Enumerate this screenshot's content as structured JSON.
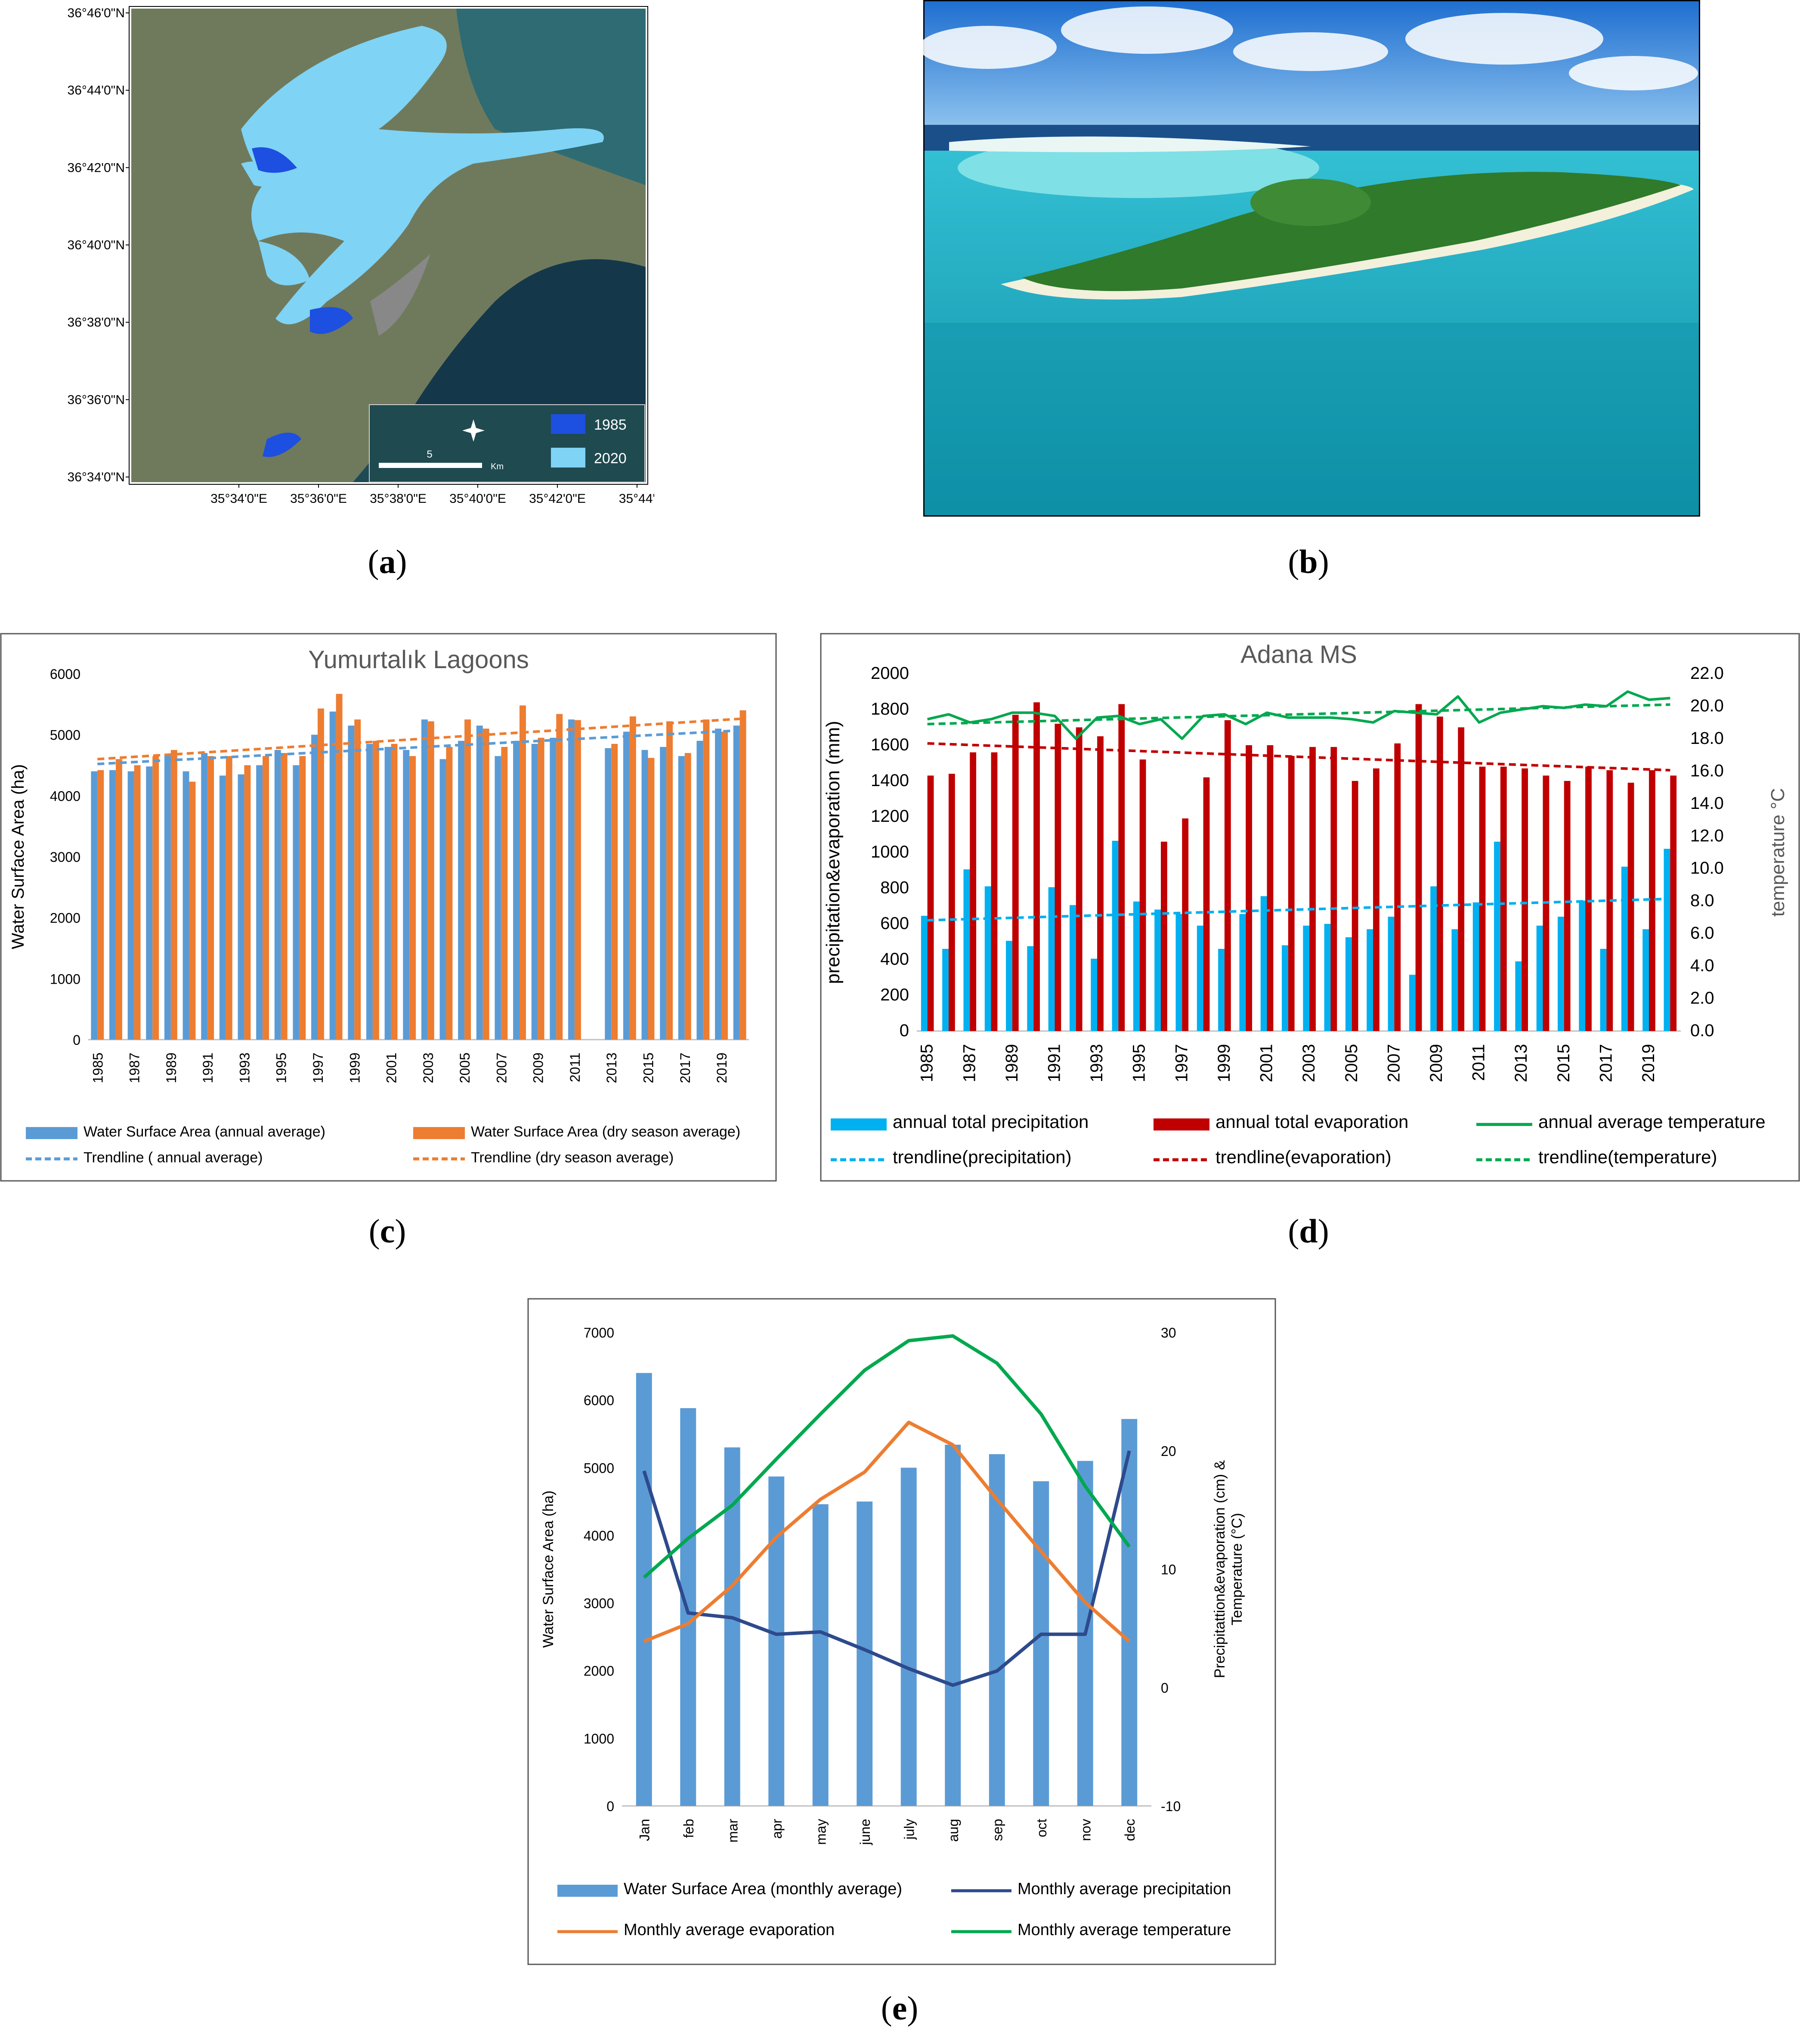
{
  "captions": {
    "a": "a",
    "b": "b",
    "c": "c",
    "d": "d",
    "e": "e"
  },
  "panel_a": {
    "lat_labels": [
      "36°46'0\"N",
      "36°44'0\"N",
      "36°42'0\"N",
      "36°40'0\"N",
      "36°38'0\"N",
      "36°36'0\"N",
      "36°34'0\"N"
    ],
    "lon_labels": [
      "35°34'0\"E",
      "35°36'0\"E",
      "35°38'0\"E",
      "35°40'0\"E",
      "35°42'0\"E",
      "35°44'"
    ],
    "legend": [
      {
        "label": "1985",
        "color": "#1d4fe0"
      },
      {
        "label": "2020",
        "color": "#7fd3f5"
      }
    ],
    "scale_number": "5",
    "scale_unit": "Km",
    "icons": [
      "compass-rose-icon"
    ]
  },
  "panel_b": {
    "description_icon": "aerial-island-photo"
  },
  "chart_data": [
    {
      "id": "c",
      "type": "bar",
      "title": "Yumurtalık Lagoons",
      "ylabel": "Water Surface Area (ha)",
      "ylim": [
        0,
        6000
      ],
      "yticks": [
        "0",
        "1000",
        "2000",
        "3000",
        "4000",
        "5000",
        "6000"
      ],
      "categories": [
        1985,
        1986,
        1987,
        1988,
        1989,
        1990,
        1991,
        1992,
        1993,
        1994,
        1995,
        1996,
        1997,
        1998,
        1999,
        2000,
        2001,
        2002,
        2003,
        2004,
        2005,
        2006,
        2007,
        2008,
        2009,
        2010,
        2011,
        2012,
        2013,
        2014,
        2015,
        2016,
        2017,
        2018,
        2019,
        2020
      ],
      "xtick_labels": [
        "1985",
        "1987",
        "1989",
        "1991",
        "1993",
        "1995",
        "1997",
        "1999",
        "2001",
        "2003",
        "2005",
        "2007",
        "2009",
        "2011",
        "2013",
        "2015",
        "2017",
        "2019"
      ],
      "series": [
        {
          "name": "Water Surface Area (annual average)",
          "color": "#5b9bd5",
          "values": [
            4400,
            4420,
            4400,
            4480,
            4680,
            4400,
            4700,
            4330,
            4350,
            4500,
            4750,
            4500,
            5000,
            5380,
            5150,
            4850,
            4800,
            4750,
            5250,
            4600,
            4900,
            5150,
            4650,
            4900,
            4850,
            4950,
            5250,
            null,
            4780,
            5050,
            4750,
            4800,
            4650,
            4900,
            5100,
            5150
          ]
        },
        {
          "name": "Water Surface Area (dry season average)",
          "color": "#ed7d31",
          "values": [
            4420,
            4600,
            4500,
            4650,
            4750,
            4230,
            4650,
            4650,
            4500,
            4650,
            4700,
            4650,
            5430,
            5670,
            5250,
            4900,
            4850,
            4650,
            5220,
            4800,
            5250,
            5100,
            4800,
            5480,
            4950,
            5340,
            5240,
            null,
            4850,
            5300,
            4620,
            5220,
            4700,
            5250,
            5050,
            5400
          ]
        }
      ],
      "trendlines": [
        {
          "name": "Trendline ( annual average)",
          "color": "#5b9bd5",
          "start": 4520,
          "end": 5070
        },
        {
          "name": "Trendline (dry season average)",
          "color": "#ed7d31",
          "start": 4600,
          "end": 5260
        }
      ]
    },
    {
      "id": "d",
      "type": "bar",
      "title": "Adana MS",
      "ylabel": "precipitation&evaporation (mm)",
      "y2label": "temperature °C",
      "ylim": [
        0,
        2000
      ],
      "y2lim": [
        0,
        22
      ],
      "yticks": [
        "0",
        "200",
        "400",
        "600",
        "800",
        "1000",
        "1200",
        "1400",
        "1600",
        "1800",
        "2000"
      ],
      "y2ticks": [
        "0.0",
        "2.0",
        "4.0",
        "6.0",
        "8.0",
        "10.0",
        "12.0",
        "14.0",
        "16.0",
        "18.0",
        "20.0",
        "22.0"
      ],
      "categories": [
        1985,
        1986,
        1987,
        1988,
        1989,
        1990,
        1991,
        1992,
        1993,
        1994,
        1995,
        1996,
        1997,
        1998,
        1999,
        2000,
        2001,
        2002,
        2003,
        2004,
        2005,
        2006,
        2007,
        2008,
        2009,
        2010,
        2011,
        2012,
        2013,
        2014,
        2015,
        2016,
        2017,
        2018,
        2019,
        2020
      ],
      "xtick_labels": [
        "1985",
        "1987",
        "1989",
        "1991",
        "1993",
        "1995",
        "1997",
        "1999",
        "2001",
        "2003",
        "2005",
        "2007",
        "2009",
        "2011",
        "2013",
        "2015",
        "2017",
        "2019"
      ],
      "series": [
        {
          "name": "annual total precipitation",
          "color": "#00b0f0",
          "values": [
            645,
            460,
            905,
            810,
            505,
            475,
            805,
            705,
            405,
            1065,
            725,
            680,
            655,
            590,
            460,
            655,
            755,
            480,
            590,
            600,
            525,
            570,
            640,
            315,
            810,
            570,
            720,
            1060,
            390,
            590,
            640,
            730,
            460,
            920,
            570,
            1020
          ]
        },
        {
          "name": "annual total evaporation",
          "color": "#c00000",
          "values": [
            1430,
            1440,
            1560,
            1560,
            1770,
            1840,
            1720,
            1700,
            1650,
            1830,
            1520,
            1060,
            1190,
            1420,
            1740,
            1600,
            1600,
            1540,
            1590,
            1590,
            1400,
            1470,
            1610,
            1830,
            1760,
            1700,
            1480,
            1480,
            1470,
            1430,
            1400,
            1480,
            1460,
            1390,
            1460,
            1430
          ]
        },
        {
          "name": "annual average temperature",
          "color": "#00a84f",
          "axis": "right",
          "values": [
            19.2,
            19.5,
            19.0,
            19.2,
            19.6,
            19.6,
            19.4,
            18.0,
            19.3,
            19.4,
            18.9,
            19.2,
            18.0,
            19.4,
            19.5,
            18.9,
            19.6,
            19.3,
            19.3,
            19.3,
            19.2,
            19.0,
            19.7,
            19.6,
            19.5,
            20.6,
            19.0,
            19.6,
            19.8,
            20.0,
            19.9,
            20.1,
            20.0,
            20.9,
            20.4,
            20.5
          ]
        }
      ],
      "trendlines": [
        {
          "name": "trendline(precipitation)",
          "color": "#00b0f0",
          "start": 620,
          "end": 740
        },
        {
          "name": "trendline(evaporation)",
          "color": "#c00000",
          "start": 1610,
          "end": 1460
        },
        {
          "name": "trendline(temperature)",
          "color": "#00a84f",
          "axis": "right",
          "start": 18.9,
          "end": 20.1
        }
      ]
    },
    {
      "id": "e",
      "type": "bar",
      "ylabel": "Water Surface Area (ha)",
      "y2label": "Precipitattion&evaporation (cm) & Temperature (°C)",
      "ylim": [
        0,
        7000
      ],
      "y2lim": [
        -10,
        30
      ],
      "yticks": [
        "0",
        "1000",
        "2000",
        "3000",
        "4000",
        "5000",
        "6000",
        "7000"
      ],
      "y2ticks": [
        "-10",
        "0",
        "10",
        "20",
        "30"
      ],
      "categories": [
        "Jan",
        "feb",
        "mar",
        "apr",
        "may",
        "june",
        "july",
        "aug",
        "sep",
        "oct",
        "nov",
        "dec"
      ],
      "series": [
        {
          "name": "Water Surface Area (monthly average)",
          "color": "#5b9bd5",
          "values": [
            6400,
            5880,
            5300,
            4870,
            4460,
            4500,
            5000,
            5340,
            5200,
            4800,
            5100,
            5720
          ]
        },
        {
          "name": "Monthly average precipitation",
          "color": "#2e4a8c",
          "axis": "right",
          "values": [
            18.3,
            6.3,
            5.9,
            4.5,
            4.7,
            3.2,
            1.6,
            0.2,
            1.4,
            4.5,
            4.5,
            20.0
          ]
        },
        {
          "name": "Monthly  average evaporation",
          "color": "#ed7d31",
          "axis": "right",
          "values": [
            3.9,
            5.4,
            8.6,
            12.7,
            15.9,
            18.2,
            22.4,
            20.5,
            15.9,
            11.5,
            7.2,
            3.9
          ]
        },
        {
          "name": "Monthly  average temperature",
          "color": "#00a84f",
          "axis": "right",
          "values": [
            9.3,
            12.6,
            15.4,
            19.3,
            23.1,
            26.8,
            29.3,
            29.7,
            27.4,
            23.1,
            17.0,
            11.9
          ]
        }
      ]
    }
  ]
}
